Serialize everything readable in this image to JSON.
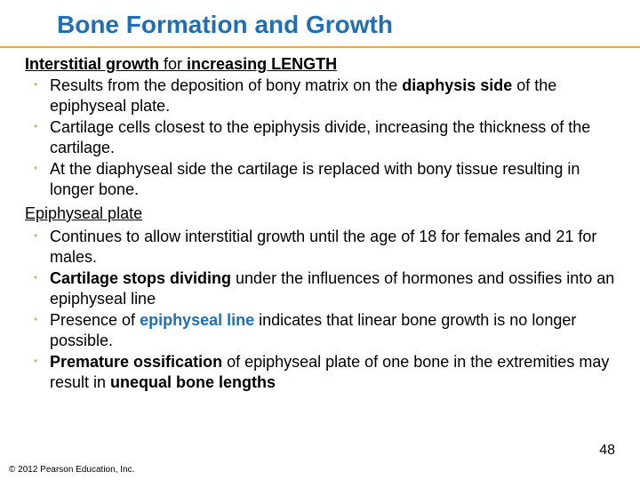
{
  "title": {
    "text": "Bone Formation and Growth",
    "color": "#1f6fb2",
    "underline_color": "#f0a63a"
  },
  "section1": {
    "heading_part1": "Interstitial growth",
    "heading_mid": " for ",
    "heading_part2": "increasing LENGTH",
    "bullet_color": "#a8c66c",
    "items": [
      {
        "pre": "Results from the deposition of bony matrix on the ",
        "bold": "diaphysis side",
        "post": " of the epiphyseal plate."
      },
      {
        "pre": "Cartilage cells closest to the epiphysis divide, increasing the thickness of the cartilage.",
        "bold": "",
        "post": ""
      },
      {
        "pre": "At the diaphyseal side the cartilage is replaced with bony tissue resulting in longer bone.",
        "bold": "",
        "post": ""
      }
    ]
  },
  "section2": {
    "heading": "Epiphyseal plate",
    "bullet_color": "#a8c66c",
    "keyword_color": "#1f6fb2",
    "items": [
      {
        "segments": [
          {
            "t": "Continues to allow interstitial growth until the age of 18 for females and 21 for males."
          }
        ]
      },
      {
        "segments": [
          {
            "t": "Cartilage stops dividing",
            "b": true
          },
          {
            "t": " under the influences of hormones and ossifies into an epiphyseal line"
          }
        ]
      },
      {
        "segments": [
          {
            "t": "Presence of "
          },
          {
            "t": "epiphyseal line",
            "b": true,
            "kw": true
          },
          {
            "t": " indicates that linear bone growth is no longer possible."
          }
        ]
      },
      {
        "segments": [
          {
            "t": "Premature ossification",
            "b": true
          },
          {
            "t": " of epiphyseal plate of one bone in the extremities may result in "
          },
          {
            "t": "unequal bone lengths",
            "b": true
          }
        ]
      }
    ]
  },
  "page_number": "48",
  "copyright": "© 2012 Pearson Education, Inc."
}
